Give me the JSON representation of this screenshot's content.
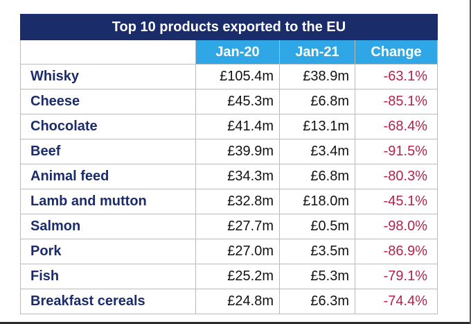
{
  "table": {
    "title": "Top 10 products exported to the EU",
    "headers": {
      "product": "",
      "jan20": "Jan-20",
      "jan21": "Jan-21",
      "change": "Change"
    },
    "rows": [
      {
        "product": "Whisky",
        "jan20": "£105.4m",
        "jan21": "£38.9m",
        "change": "-63.1%"
      },
      {
        "product": "Cheese",
        "jan20": "£45.3m",
        "jan21": "£6.8m",
        "change": "-85.1%"
      },
      {
        "product": "Chocolate",
        "jan20": "£41.4m",
        "jan21": "£13.1m",
        "change": "-68.4%"
      },
      {
        "product": "Beef",
        "jan20": "£39.9m",
        "jan21": "£3.4m",
        "change": "-91.5%"
      },
      {
        "product": "Animal feed",
        "jan20": "£34.3m",
        "jan21": "£6.8m",
        "change": "-80.3%"
      },
      {
        "product": "Lamb and mutton",
        "jan20": "£32.8m",
        "jan21": "£18.0m",
        "change": "-45.1%"
      },
      {
        "product": "Salmon",
        "jan20": "£27.7m",
        "jan21": "£0.5m",
        "change": "-98.0%"
      },
      {
        "product": "Pork",
        "jan20": "£27.0m",
        "jan21": "£3.5m",
        "change": "-86.9%"
      },
      {
        "product": "Fish",
        "jan20": "£25.2m",
        "jan21": "£5.3m",
        "change": "-79.1%"
      },
      {
        "product": "Breakfast cereals",
        "jan20": "£24.8m",
        "jan21": "£6.3m",
        "change": "-74.4%"
      }
    ]
  },
  "colors": {
    "title_bg": "#1b2c6b",
    "header_bg": "#2fa6e6",
    "product_text": "#1b2c6b",
    "change_text": "#b3234b"
  }
}
